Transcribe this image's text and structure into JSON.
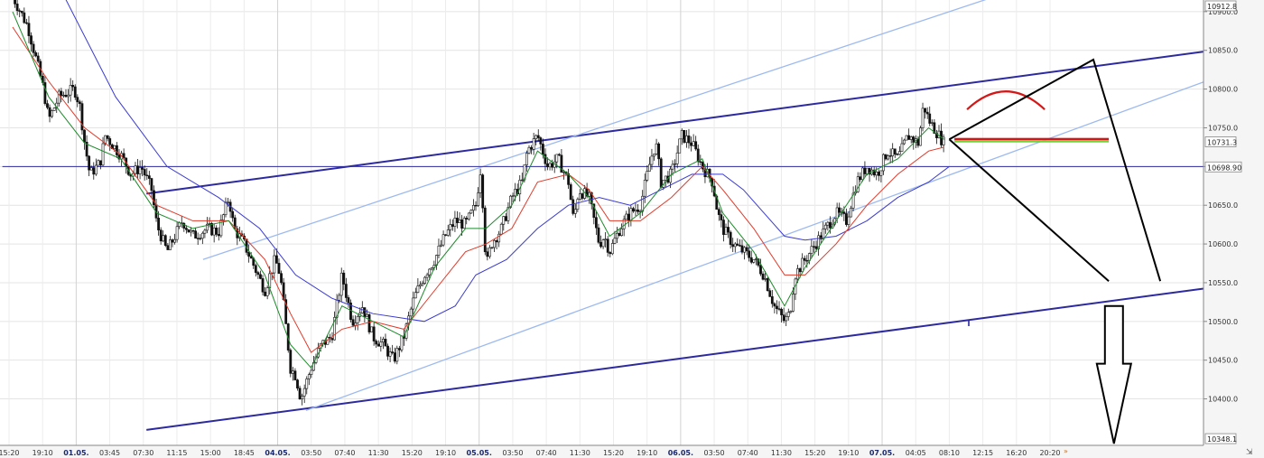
{
  "chart_data": {
    "type": "candlestick",
    "y_range": [
      10340,
      10915
    ],
    "y_ticks": [
      {
        "value": 10900,
        "label": "10900.0"
      },
      {
        "value": 10850,
        "label": "10850.0"
      },
      {
        "value": 10800,
        "label": "10800.0"
      },
      {
        "value": 10750,
        "label": "10750.0"
      },
      {
        "value": 10700,
        "label": "10700.0"
      },
      {
        "value": 10650,
        "label": "10650.0"
      },
      {
        "value": 10600,
        "label": "10600.0"
      },
      {
        "value": 10550,
        "label": "10550.0"
      },
      {
        "value": 10500,
        "label": "10500.0"
      },
      {
        "value": 10450,
        "label": "10450.0"
      },
      {
        "value": 10400,
        "label": "10400.0"
      }
    ],
    "price_tags": [
      {
        "value": 10912.8,
        "label": "10912.8"
      },
      {
        "value": 10731.3,
        "label": "10731.3"
      },
      {
        "value": 10698.9,
        "label": "10698.90"
      },
      {
        "value": 10348.1,
        "label": "10348.1"
      }
    ],
    "x_labels": [
      {
        "label": "15:20",
        "date": false
      },
      {
        "label": "19:10",
        "date": false
      },
      {
        "label": "01.05.",
        "date": true
      },
      {
        "label": "03:45",
        "date": false
      },
      {
        "label": "07:30",
        "date": false
      },
      {
        "label": "11:15",
        "date": false
      },
      {
        "label": "15:00",
        "date": false
      },
      {
        "label": "18:45",
        "date": false
      },
      {
        "label": "04.05.",
        "date": true
      },
      {
        "label": "03:50",
        "date": false
      },
      {
        "label": "07:40",
        "date": false
      },
      {
        "label": "11:30",
        "date": false
      },
      {
        "label": "15:20",
        "date": false
      },
      {
        "label": "19:10",
        "date": false
      },
      {
        "label": "05.05.",
        "date": true
      },
      {
        "label": "03:50",
        "date": false
      },
      {
        "label": "07:40",
        "date": false
      },
      {
        "label": "11:30",
        "date": false
      },
      {
        "label": "15:20",
        "date": false
      },
      {
        "label": "19:10",
        "date": false
      },
      {
        "label": "06.05.",
        "date": true
      },
      {
        "label": "03:50",
        "date": false
      },
      {
        "label": "07:40",
        "date": false
      },
      {
        "label": "11:30",
        "date": false
      },
      {
        "label": "15:20",
        "date": false
      },
      {
        "label": "19:10",
        "date": false
      },
      {
        "label": "07.05.",
        "date": true
      },
      {
        "label": "04:05",
        "date": false
      },
      {
        "label": "08:10",
        "date": false
      },
      {
        "label": "12:15",
        "date": false
      },
      {
        "label": "16:20",
        "date": false
      },
      {
        "label": "20:20",
        "date": false
      }
    ],
    "price_path": [
      [
        0,
        10920
      ],
      [
        3,
        10880
      ],
      [
        6,
        10800
      ],
      [
        7,
        10760
      ],
      [
        9,
        10790
      ],
      [
        12,
        10800
      ],
      [
        13,
        10780
      ],
      [
        14,
        10730
      ],
      [
        15,
        10690
      ],
      [
        17,
        10705
      ],
      [
        18,
        10740
      ],
      [
        21,
        10715
      ],
      [
        23,
        10690
      ],
      [
        25,
        10700
      ],
      [
        27,
        10670
      ],
      [
        28,
        10625
      ],
      [
        30,
        10590
      ],
      [
        33,
        10630
      ],
      [
        35,
        10610
      ],
      [
        38,
        10620
      ],
      [
        40,
        10615
      ],
      [
        42,
        10660
      ],
      [
        43,
        10620
      ],
      [
        45,
        10600
      ],
      [
        47,
        10570
      ],
      [
        49,
        10540
      ],
      [
        51,
        10580
      ],
      [
        52,
        10560
      ],
      [
        53,
        10500
      ],
      [
        54,
        10440
      ],
      [
        55,
        10430
      ],
      [
        56,
        10400
      ],
      [
        57,
        10420
      ],
      [
        58,
        10440
      ],
      [
        60,
        10470
      ],
      [
        62,
        10480
      ],
      [
        64,
        10560
      ],
      [
        66,
        10500
      ],
      [
        68,
        10520
      ],
      [
        70,
        10480
      ],
      [
        72,
        10470
      ],
      [
        74,
        10450
      ],
      [
        76,
        10480
      ],
      [
        78,
        10530
      ],
      [
        80,
        10560
      ],
      [
        82,
        10580
      ],
      [
        84,
        10610
      ],
      [
        86,
        10630
      ],
      [
        88,
        10625
      ],
      [
        90,
        10650
      ],
      [
        91,
        10700
      ],
      [
        92,
        10570
      ],
      [
        93,
        10600
      ],
      [
        95,
        10620
      ],
      [
        97,
        10660
      ],
      [
        99,
        10680
      ],
      [
        100,
        10720
      ],
      [
        102,
        10740
      ],
      [
        104,
        10700
      ],
      [
        106,
        10710
      ],
      [
        108,
        10680
      ],
      [
        109,
        10630
      ],
      [
        110,
        10670
      ],
      [
        112,
        10660
      ],
      [
        114,
        10600
      ],
      [
        115,
        10610
      ],
      [
        116,
        10590
      ],
      [
        118,
        10620
      ],
      [
        120,
        10640
      ],
      [
        122,
        10650
      ],
      [
        124,
        10710
      ],
      [
        125,
        10730
      ],
      [
        126,
        10680
      ],
      [
        128,
        10690
      ],
      [
        130,
        10740
      ],
      [
        132,
        10730
      ],
      [
        134,
        10700
      ],
      [
        136,
        10680
      ],
      [
        137,
        10640
      ],
      [
        138,
        10620
      ],
      [
        140,
        10600
      ],
      [
        142,
        10590
      ],
      [
        144,
        10580
      ],
      [
        146,
        10560
      ],
      [
        148,
        10520
      ],
      [
        150,
        10500
      ],
      [
        151,
        10510
      ],
      [
        152,
        10560
      ],
      [
        154,
        10580
      ],
      [
        156,
        10600
      ],
      [
        158,
        10620
      ],
      [
        160,
        10640
      ],
      [
        162,
        10630
      ],
      [
        164,
        10680
      ],
      [
        166,
        10700
      ],
      [
        168,
        10690
      ],
      [
        170,
        10720
      ],
      [
        172,
        10710
      ],
      [
        174,
        10740
      ],
      [
        176,
        10730
      ],
      [
        177,
        10780
      ],
      [
        178,
        10760
      ],
      [
        179,
        10750
      ],
      [
        180,
        10740
      ],
      [
        181,
        10730
      ]
    ],
    "ma_fast": [
      [
        0,
        10900
      ],
      [
        7,
        10790
      ],
      [
        14,
        10730
      ],
      [
        21,
        10710
      ],
      [
        28,
        10640
      ],
      [
        35,
        10620
      ],
      [
        42,
        10630
      ],
      [
        49,
        10560
      ],
      [
        54,
        10470
      ],
      [
        58,
        10440
      ],
      [
        64,
        10520
      ],
      [
        70,
        10500
      ],
      [
        76,
        10480
      ],
      [
        82,
        10570
      ],
      [
        88,
        10620
      ],
      [
        92,
        10620
      ],
      [
        97,
        10650
      ],
      [
        102,
        10720
      ],
      [
        108,
        10690
      ],
      [
        112,
        10660
      ],
      [
        116,
        10610
      ],
      [
        122,
        10640
      ],
      [
        128,
        10690
      ],
      [
        134,
        10710
      ],
      [
        138,
        10640
      ],
      [
        144,
        10590
      ],
      [
        150,
        10520
      ],
      [
        154,
        10570
      ],
      [
        160,
        10630
      ],
      [
        166,
        10690
      ],
      [
        172,
        10710
      ],
      [
        178,
        10750
      ],
      [
        181,
        10735
      ]
    ],
    "ma_mid": [
      [
        0,
        10880
      ],
      [
        7,
        10810
      ],
      [
        14,
        10750
      ],
      [
        21,
        10715
      ],
      [
        28,
        10650
      ],
      [
        35,
        10630
      ],
      [
        42,
        10630
      ],
      [
        49,
        10580
      ],
      [
        54,
        10510
      ],
      [
        58,
        10460
      ],
      [
        64,
        10490
      ],
      [
        70,
        10500
      ],
      [
        76,
        10490
      ],
      [
        82,
        10540
      ],
      [
        88,
        10590
      ],
      [
        92,
        10600
      ],
      [
        97,
        10620
      ],
      [
        102,
        10680
      ],
      [
        108,
        10690
      ],
      [
        112,
        10670
      ],
      [
        116,
        10630
      ],
      [
        122,
        10630
      ],
      [
        128,
        10660
      ],
      [
        134,
        10700
      ],
      [
        138,
        10670
      ],
      [
        144,
        10620
      ],
      [
        150,
        10560
      ],
      [
        154,
        10560
      ],
      [
        160,
        10600
      ],
      [
        166,
        10650
      ],
      [
        172,
        10690
      ],
      [
        178,
        10720
      ],
      [
        181,
        10725
      ]
    ],
    "ma_slow": [
      [
        10,
        10920
      ],
      [
        20,
        10790
      ],
      [
        30,
        10700
      ],
      [
        40,
        10660
      ],
      [
        48,
        10620
      ],
      [
        55,
        10560
      ],
      [
        62,
        10530
      ],
      [
        70,
        10510
      ],
      [
        80,
        10500
      ],
      [
        86,
        10520
      ],
      [
        90,
        10560
      ],
      [
        96,
        10580
      ],
      [
        102,
        10620
      ],
      [
        108,
        10650
      ],
      [
        114,
        10660
      ],
      [
        120,
        10650
      ],
      [
        126,
        10670
      ],
      [
        132,
        10690
      ],
      [
        138,
        10690
      ],
      [
        142,
        10670
      ],
      [
        146,
        10640
      ],
      [
        150,
        10610
      ],
      [
        154,
        10605
      ],
      [
        160,
        10610
      ],
      [
        166,
        10630
      ],
      [
        172,
        10660
      ],
      [
        178,
        10680
      ],
      [
        182,
        10700
      ]
    ],
    "lines": [
      {
        "name": "channel-upper",
        "from": [
          26,
          10665
        ],
        "to": [
          240,
          10856
        ],
        "color": "#2c2a9e",
        "width": 2
      },
      {
        "name": "channel-lower",
        "from": [
          26,
          10360
        ],
        "to": [
          240,
          10550
        ],
        "color": "#2c2a9e",
        "width": 2
      },
      {
        "name": "inner-upper",
        "from": [
          37,
          10580
        ],
        "to": [
          192,
          10922
        ],
        "color": "#9dbaf0",
        "width": 1.3
      },
      {
        "name": "inner-lower",
        "from": [
          57,
          10385
        ],
        "to": [
          240,
          10830
        ],
        "color": "#9dbaf0",
        "width": 1.3
      },
      {
        "name": "horizontal-level",
        "from": [
          -2,
          10700
        ],
        "to": [
          244,
          10700
        ],
        "color": "#2c2a9e",
        "width": 1
      }
    ],
    "projection": [
      [
        182,
        10735
      ],
      [
        210,
        10838
      ],
      [
        223,
        10552
      ]
    ],
    "projection_second": [
      [
        182,
        10735
      ],
      [
        213,
        10552
      ]
    ],
    "marker": {
      "x": [
        183,
        213
      ],
      "y": 10734,
      "colors": [
        "#d01818",
        "#6fd23a"
      ]
    },
    "arc": {
      "cx": 193,
      "y": 10790,
      "color": "#d41818"
    },
    "down_arrow": {
      "x": 214,
      "y_top": 10520,
      "y_bottom": 10340,
      "direction": "down"
    }
  }
}
